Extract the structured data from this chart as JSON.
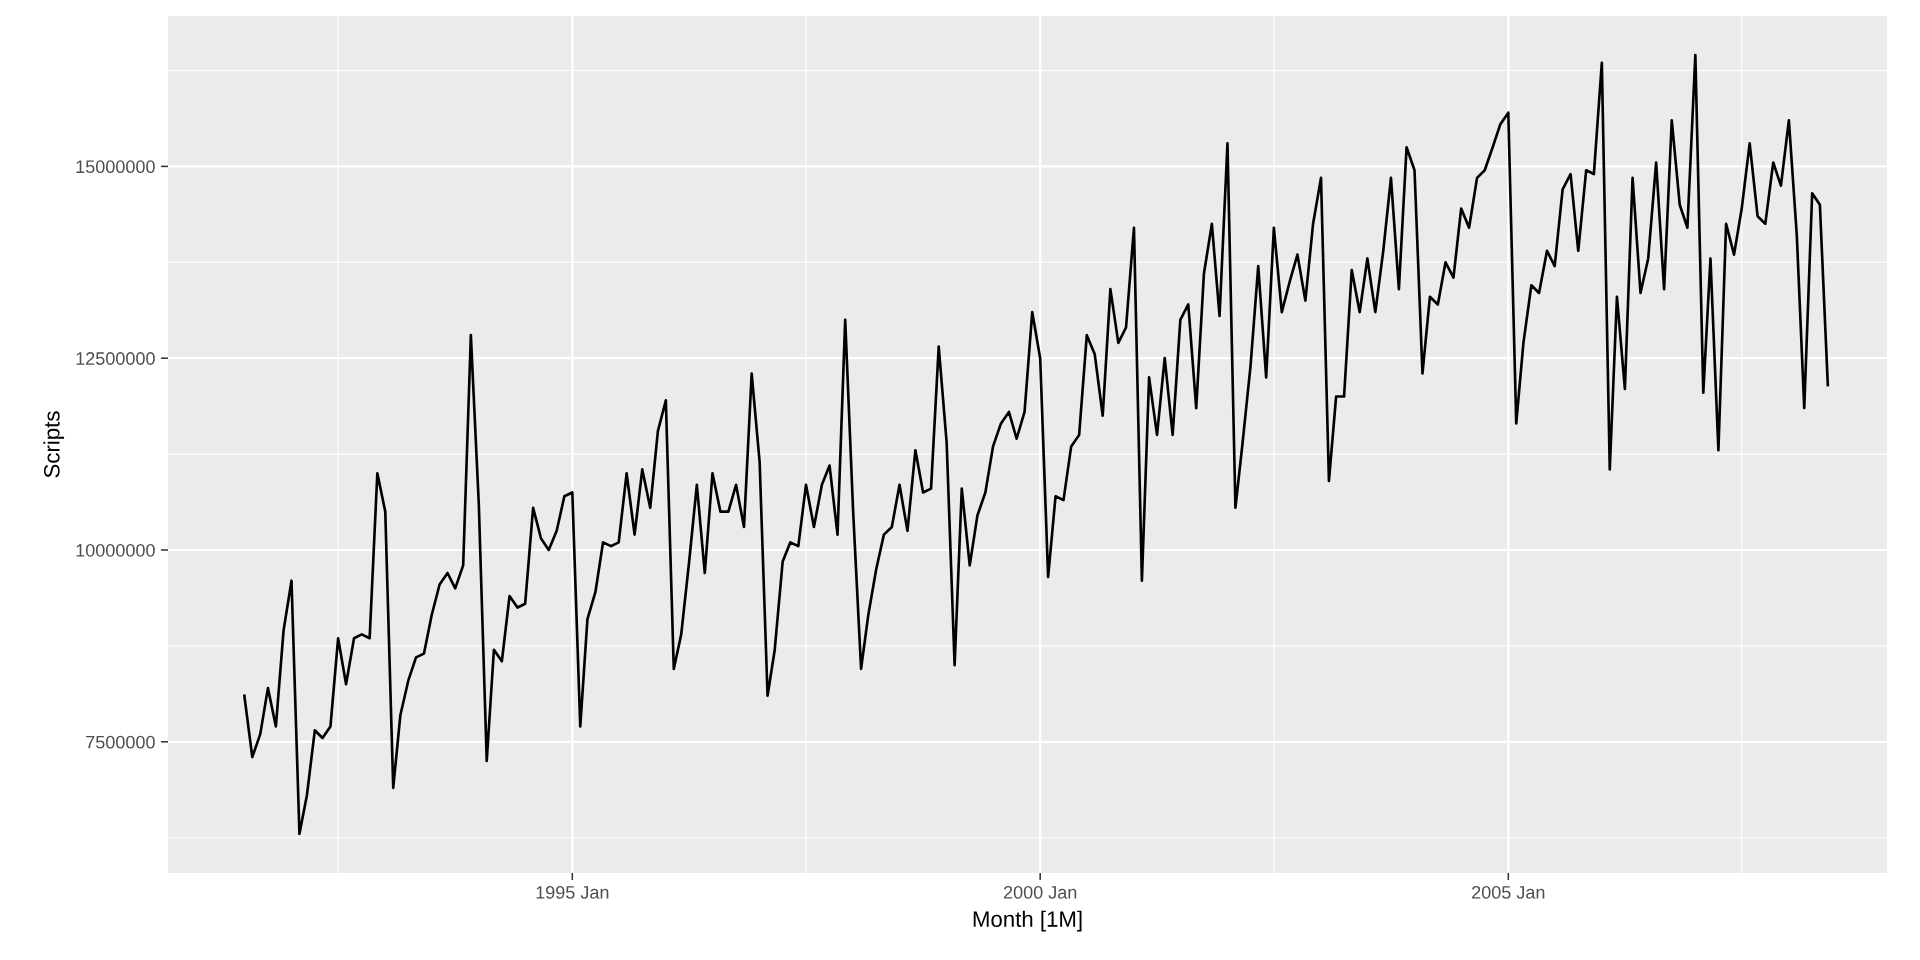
{
  "chart_data": {
    "type": "line",
    "xlabel": "Month [1M]",
    "ylabel": "Scripts",
    "x": [
      "1991-07",
      "1991-08",
      "1991-09",
      "1991-10",
      "1991-11",
      "1991-12",
      "1992-01",
      "1992-02",
      "1992-03",
      "1992-04",
      "1992-05",
      "1992-06",
      "1992-07",
      "1992-08",
      "1992-09",
      "1992-10",
      "1992-11",
      "1992-12",
      "1993-01",
      "1993-02",
      "1993-03",
      "1993-04",
      "1993-05",
      "1993-06",
      "1993-07",
      "1993-08",
      "1993-09",
      "1993-10",
      "1993-11",
      "1993-12",
      "1994-01",
      "1994-02",
      "1994-03",
      "1994-04",
      "1994-05",
      "1994-06",
      "1994-07",
      "1994-08",
      "1994-09",
      "1994-10",
      "1994-11",
      "1994-12",
      "1995-01",
      "1995-02",
      "1995-03",
      "1995-04",
      "1995-05",
      "1995-06",
      "1995-07",
      "1995-08",
      "1995-09",
      "1995-10",
      "1995-11",
      "1995-12",
      "1996-01",
      "1996-02",
      "1996-03",
      "1996-04",
      "1996-05",
      "1996-06",
      "1996-07",
      "1996-08",
      "1996-09",
      "1996-10",
      "1996-11",
      "1996-12",
      "1997-01",
      "1997-02",
      "1997-03",
      "1997-04",
      "1997-05",
      "1997-06",
      "1997-07",
      "1997-08",
      "1997-09",
      "1997-10",
      "1997-11",
      "1997-12",
      "1998-01",
      "1998-02",
      "1998-03",
      "1998-04",
      "1998-05",
      "1998-06",
      "1998-07",
      "1998-08",
      "1998-09",
      "1998-10",
      "1998-11",
      "1998-12",
      "1999-01",
      "1999-02",
      "1999-03",
      "1999-04",
      "1999-05",
      "1999-06",
      "1999-07",
      "1999-08",
      "1999-09",
      "1999-10",
      "1999-11",
      "1999-12",
      "2000-01",
      "2000-02",
      "2000-03",
      "2000-04",
      "2000-05",
      "2000-06",
      "2000-07",
      "2000-08",
      "2000-09",
      "2000-10",
      "2000-11",
      "2000-12",
      "2001-01",
      "2001-02",
      "2001-03",
      "2001-04",
      "2001-05",
      "2001-06",
      "2001-07",
      "2001-08",
      "2001-09",
      "2001-10",
      "2001-11",
      "2001-12",
      "2002-01",
      "2002-02",
      "2002-03",
      "2002-04",
      "2002-05",
      "2002-06",
      "2002-07",
      "2002-08",
      "2002-09",
      "2002-10",
      "2002-11",
      "2002-12",
      "2003-01",
      "2003-02",
      "2003-03",
      "2003-04",
      "2003-05",
      "2003-06",
      "2003-07",
      "2003-08",
      "2003-09",
      "2003-10",
      "2003-11",
      "2003-12",
      "2004-01",
      "2004-02",
      "2004-03",
      "2004-04",
      "2004-05",
      "2004-06",
      "2004-07",
      "2004-08",
      "2004-09",
      "2004-10",
      "2004-11",
      "2004-12",
      "2005-01",
      "2005-02",
      "2005-03",
      "2005-04",
      "2005-05",
      "2005-06",
      "2005-07",
      "2005-08",
      "2005-09",
      "2005-10",
      "2005-11",
      "2005-12",
      "2006-01",
      "2006-02",
      "2006-03",
      "2006-04",
      "2006-05",
      "2006-06",
      "2006-07",
      "2006-08",
      "2006-09",
      "2006-10",
      "2006-11",
      "2006-12",
      "2007-01",
      "2007-02",
      "2007-03",
      "2007-04",
      "2007-05",
      "2007-06",
      "2007-07",
      "2007-08",
      "2007-09",
      "2007-10",
      "2007-11",
      "2007-12",
      "2008-01",
      "2008-02",
      "2008-03",
      "2008-04",
      "2008-05",
      "2008-06"
    ],
    "series": [
      {
        "color": "#000000",
        "values": [
          8100000,
          7300000,
          7600000,
          8200000,
          7700000,
          8950000,
          9600000,
          6300000,
          6800000,
          7650000,
          7550000,
          7700000,
          8850000,
          8250000,
          8850000,
          8900000,
          8850000,
          11000000,
          10500000,
          6900000,
          7850000,
          8300000,
          8600000,
          8650000,
          9150000,
          9550000,
          9700000,
          9500000,
          9800000,
          12800000,
          10600000,
          7250000,
          8700000,
          8550000,
          9400000,
          9250000,
          9300000,
          10550000,
          10150000,
          10000000,
          10250000,
          10700000,
          10750000,
          7700000,
          9100000,
          9450000,
          10100000,
          10050000,
          10100000,
          11000000,
          10200000,
          11050000,
          10550000,
          11550000,
          11950000,
          8450000,
          8900000,
          9850000,
          10850000,
          9700000,
          11000000,
          10500000,
          10500000,
          10850000,
          10300000,
          12300000,
          11150000,
          8100000,
          8700000,
          9850000,
          10100000,
          10050000,
          10850000,
          10300000,
          10850000,
          11100000,
          10200000,
          13000000,
          10500000,
          8450000,
          9150000,
          9750000,
          10200000,
          10300000,
          10850000,
          10250000,
          11300000,
          10750000,
          10800000,
          12650000,
          11400000,
          8500000,
          10800000,
          9800000,
          10450000,
          10750000,
          11350000,
          11650000,
          11800000,
          11450000,
          11800000,
          13100000,
          12500000,
          9650000,
          10700000,
          10650000,
          11350000,
          11500000,
          12800000,
          12550000,
          11750000,
          13400000,
          12700000,
          12900000,
          14200000,
          9600000,
          12250000,
          11500000,
          12500000,
          11500000,
          13000000,
          13200000,
          11850000,
          13600000,
          14250000,
          13050000,
          15300000,
          10550000,
          11400000,
          12400000,
          13700000,
          12250000,
          14200000,
          13100000,
          13500000,
          13850000,
          13250000,
          14250000,
          14850000,
          10900000,
          12000000,
          12000000,
          13650000,
          13100000,
          13800000,
          13100000,
          13900000,
          14850000,
          13400000,
          15250000,
          14950000,
          12300000,
          13300000,
          13200000,
          13750000,
          13550000,
          14450000,
          14200000,
          14850000,
          14950000,
          15250000,
          15550000,
          15700000,
          11650000,
          12700000,
          13450000,
          13350000,
          13900000,
          13700000,
          14700000,
          14900000,
          13900000,
          14950000,
          14900000,
          16350000,
          11050000,
          13300000,
          12100000,
          14850000,
          13350000,
          13800000,
          15050000,
          13400000,
          15600000,
          14500000,
          14200000,
          16450000,
          12050000,
          13800000,
          11300000,
          14250000,
          13850000,
          14450000,
          15300000,
          14350000,
          14250000,
          15050000,
          14750000,
          15600000,
          14100000,
          11850000,
          14650000,
          14500000,
          12150000
        ]
      }
    ],
    "xlim": [
      "1990-09-06",
      "2009-01-18"
    ],
    "xticks": [
      {
        "value": "1992-07",
        "label": null
      },
      {
        "value": "1995-01",
        "label": "1995 Jan"
      },
      {
        "value": "1997-07",
        "label": null
      },
      {
        "value": "2000-01",
        "label": "2000 Jan"
      },
      {
        "value": "2002-07",
        "label": null
      },
      {
        "value": "2005-01",
        "label": "2005 Jan"
      },
      {
        "value": "2007-07",
        "label": null
      }
    ],
    "ylim": [
      5790000,
      16960000
    ],
    "yticks": [
      {
        "value": 6250000,
        "label": null
      },
      7500000,
      {
        "value": 8750000,
        "label": null
      },
      10000000,
      {
        "value": 11250000,
        "label": null
      },
      12500000,
      {
        "value": 13750000,
        "label": null
      },
      15000000,
      {
        "value": 16250000,
        "label": null
      }
    ],
    "grid": true,
    "line_style": "solid",
    "marker": "none"
  }
}
